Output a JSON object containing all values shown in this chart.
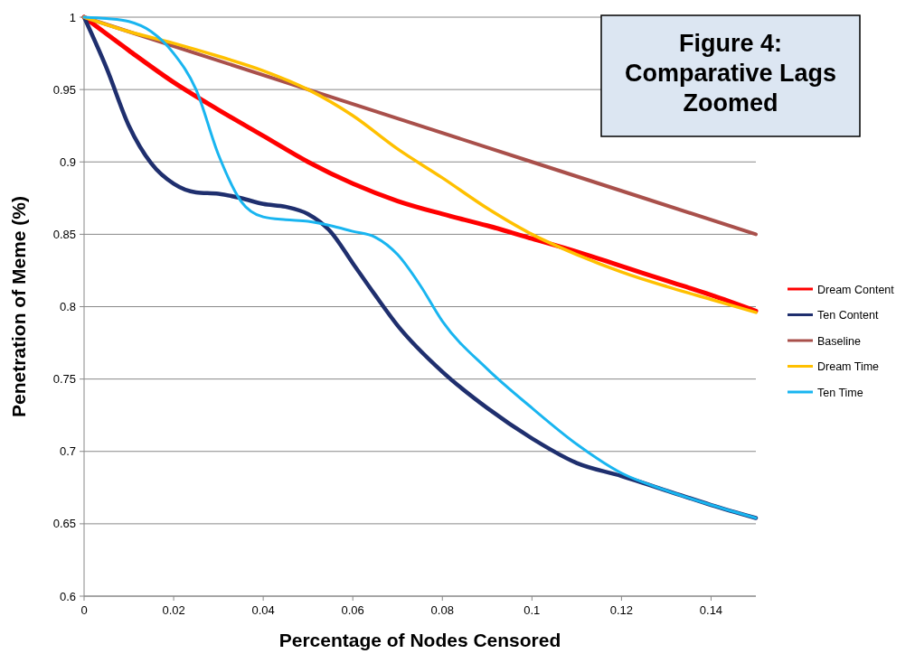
{
  "chart_data": {
    "type": "line",
    "title": "Figure 4: Comparative Lags Zoomed",
    "xlabel": "Percentage of Nodes Censored",
    "ylabel": "Penetration of Meme (%)",
    "xlim": [
      0,
      0.15
    ],
    "xticks": [
      0,
      0.02,
      0.04,
      0.06,
      0.08,
      {
        "value": 0.1,
        "label": "0.1"
      },
      0.12,
      0.14
    ],
    "ylim": [
      0.6,
      1
    ],
    "yticks": [
      {
        "value": 0.6,
        "label": "0.6"
      },
      0.65,
      {
        "value": 0.7,
        "label": "0.7"
      },
      0.75,
      {
        "value": 0.8,
        "label": "0.8"
      },
      0.85,
      {
        "value": 0.9,
        "label": "0.9"
      },
      0.95,
      {
        "value": 1,
        "label": "1"
      }
    ],
    "grid": "y",
    "legend": "right",
    "marker": "none",
    "line_style": "solid",
    "series": [
      {
        "name": "Dream Content",
        "color": "#ff0000",
        "x": [
          0,
          0.01,
          0.02,
          0.03,
          0.04,
          0.05,
          0.06,
          0.07,
          0.08,
          0.09,
          0.1,
          0.11,
          0.12,
          0.13,
          0.14,
          0.15
        ],
        "values": [
          1,
          0.977,
          0.955,
          0.936,
          0.918,
          0.9,
          0.885,
          0.873,
          0.864,
          0.856,
          0.847,
          0.838,
          0.828,
          0.818,
          0.808,
          0.797
        ]
      },
      {
        "name": "Ten Content",
        "color": "#1f2f6e",
        "x": [
          0,
          0.005,
          0.01,
          0.015,
          0.02,
          0.025,
          0.03,
          0.035,
          0.04,
          0.045,
          0.05,
          0.055,
          0.06,
          0.065,
          0.07,
          0.08,
          0.09,
          0.1,
          0.11,
          0.12,
          0.13,
          0.14,
          0.15
        ],
        "values": [
          1,
          0.965,
          0.925,
          0.899,
          0.885,
          0.879,
          0.878,
          0.875,
          0.871,
          0.869,
          0.864,
          0.852,
          0.83,
          0.808,
          0.787,
          0.755,
          0.73,
          0.709,
          0.692,
          0.683,
          0.673,
          0.663,
          0.654
        ]
      },
      {
        "name": "Baseline",
        "color": "#a9504b",
        "x": [
          0,
          0.05,
          0.1,
          0.15
        ],
        "values": [
          1,
          0.95,
          0.9,
          0.85
        ]
      },
      {
        "name": "Dream Time",
        "color": "#ffc000",
        "x": [
          0,
          0.01,
          0.02,
          0.03,
          0.04,
          0.05,
          0.06,
          0.07,
          0.08,
          0.09,
          0.1,
          0.11,
          0.12,
          0.13,
          0.14,
          0.15
        ],
        "values": [
          1,
          0.99,
          0.982,
          0.973,
          0.963,
          0.95,
          0.932,
          0.909,
          0.889,
          0.868,
          0.85,
          0.836,
          0.824,
          0.814,
          0.805,
          0.796
        ]
      },
      {
        "name": "Ten Time",
        "color": "#19b5f0",
        "x": [
          0,
          0.005,
          0.01,
          0.015,
          0.02,
          0.025,
          0.03,
          0.035,
          0.04,
          0.045,
          0.05,
          0.055,
          0.06,
          0.065,
          0.07,
          0.075,
          0.08,
          0.09,
          0.1,
          0.11,
          0.12,
          0.13,
          0.14,
          0.15
        ],
        "values": [
          1,
          0.999,
          0.997,
          0.99,
          0.975,
          0.95,
          0.905,
          0.873,
          0.862,
          0.86,
          0.859,
          0.856,
          0.852,
          0.848,
          0.836,
          0.815,
          0.79,
          0.757,
          0.73,
          0.705,
          0.685,
          0.673,
          0.663,
          0.654
        ]
      }
    ]
  }
}
